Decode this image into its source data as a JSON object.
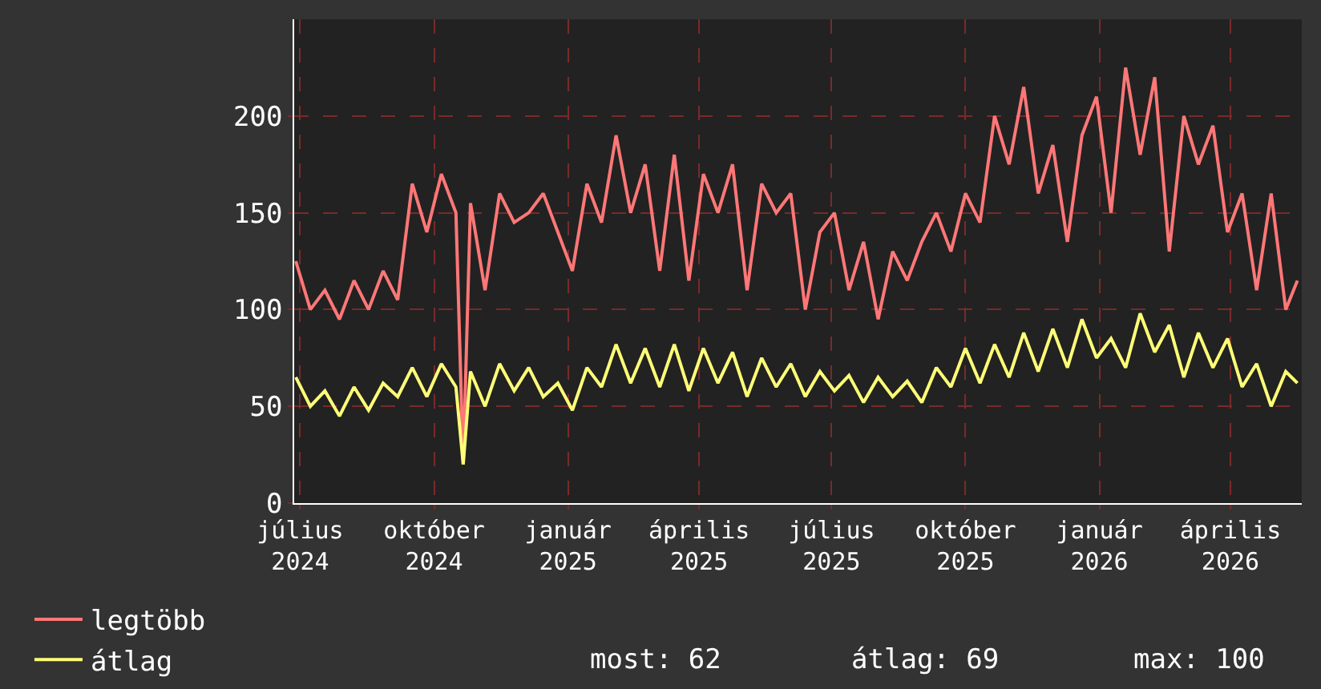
{
  "chart_data": {
    "type": "line",
    "x": [
      "2024-06-28",
      "2024-07-08",
      "2024-07-18",
      "2024-07-28",
      "2024-08-07",
      "2024-08-17",
      "2024-08-27",
      "2024-09-06",
      "2024-09-16",
      "2024-09-26",
      "2024-10-06",
      "2024-10-16",
      "2024-10-21",
      "2024-10-26",
      "2024-11-05",
      "2024-11-15",
      "2024-11-25",
      "2024-12-05",
      "2024-12-15",
      "2024-12-25",
      "2025-01-04",
      "2025-01-14",
      "2025-01-24",
      "2025-02-03",
      "2025-02-13",
      "2025-02-23",
      "2025-03-05",
      "2025-03-15",
      "2025-03-25",
      "2025-04-04",
      "2025-04-14",
      "2025-04-24",
      "2025-05-04",
      "2025-05-14",
      "2025-05-24",
      "2025-06-03",
      "2025-06-13",
      "2025-06-23",
      "2025-07-03",
      "2025-07-13",
      "2025-07-23",
      "2025-08-02",
      "2025-08-12",
      "2025-08-22",
      "2025-09-01",
      "2025-09-11",
      "2025-09-21",
      "2025-10-01",
      "2025-10-11",
      "2025-10-21",
      "2025-10-31",
      "2025-11-10",
      "2025-11-20",
      "2025-11-30",
      "2025-12-10",
      "2025-12-20",
      "2025-12-30",
      "2026-01-09",
      "2026-01-19",
      "2026-01-29",
      "2026-02-08",
      "2026-02-18",
      "2026-02-28",
      "2026-03-10",
      "2026-03-20",
      "2026-03-30",
      "2026-04-09",
      "2026-04-19",
      "2026-04-29",
      "2026-05-09",
      "2026-05-17"
    ],
    "series": [
      {
        "name": "legtöbb",
        "color": "#ff7777",
        "values": [
          125,
          100,
          110,
          95,
          115,
          100,
          120,
          105,
          165,
          140,
          170,
          150,
          20,
          155,
          110,
          160,
          145,
          150,
          160,
          140,
          120,
          165,
          145,
          190,
          150,
          175,
          120,
          180,
          115,
          170,
          150,
          175,
          110,
          165,
          150,
          160,
          100,
          140,
          150,
          110,
          135,
          95,
          130,
          115,
          135,
          150,
          130,
          160,
          145,
          200,
          175,
          215,
          160,
          185,
          135,
          190,
          210,
          150,
          225,
          180,
          220,
          130,
          200,
          175,
          195,
          140,
          160,
          110,
          160,
          100,
          115
        ]
      },
      {
        "name": "átlag",
        "color": "#ffff77",
        "values": [
          65,
          50,
          58,
          45,
          60,
          48,
          62,
          55,
          70,
          55,
          72,
          60,
          20,
          68,
          50,
          72,
          58,
          70,
          55,
          62,
          48,
          70,
          60,
          82,
          62,
          80,
          60,
          82,
          58,
          80,
          62,
          78,
          55,
          75,
          60,
          72,
          55,
          68,
          58,
          66,
          52,
          65,
          55,
          63,
          52,
          70,
          60,
          80,
          62,
          82,
          65,
          88,
          68,
          90,
          70,
          95,
          75,
          85,
          70,
          98,
          78,
          92,
          65,
          88,
          70,
          85,
          60,
          72,
          50,
          68,
          62
        ]
      }
    ],
    "xlim": [
      "2024-06-27",
      "2026-05-20"
    ],
    "xticks": [
      {
        "value": "2024-07-01",
        "label": "július 2024"
      },
      {
        "value": "2024-10-01",
        "label": "október 2024"
      },
      {
        "value": "2025-01-01",
        "label": "január 2025"
      },
      {
        "value": "2025-04-01",
        "label": "április 2025"
      },
      {
        "value": "2025-07-01",
        "label": "július 2025"
      },
      {
        "value": "2025-10-01",
        "label": "október 2025"
      },
      {
        "value": "2026-01-01",
        "label": "január 2026"
      },
      {
        "value": "2026-04-01",
        "label": "április 2026"
      }
    ],
    "ylim": [
      0,
      250
    ],
    "yticks": [
      0,
      50,
      100,
      150,
      200
    ],
    "grid": true,
    "legend": "bottom left",
    "annotations": [
      "most: 62",
      "átlag: 69",
      "max: 100"
    ]
  }
}
